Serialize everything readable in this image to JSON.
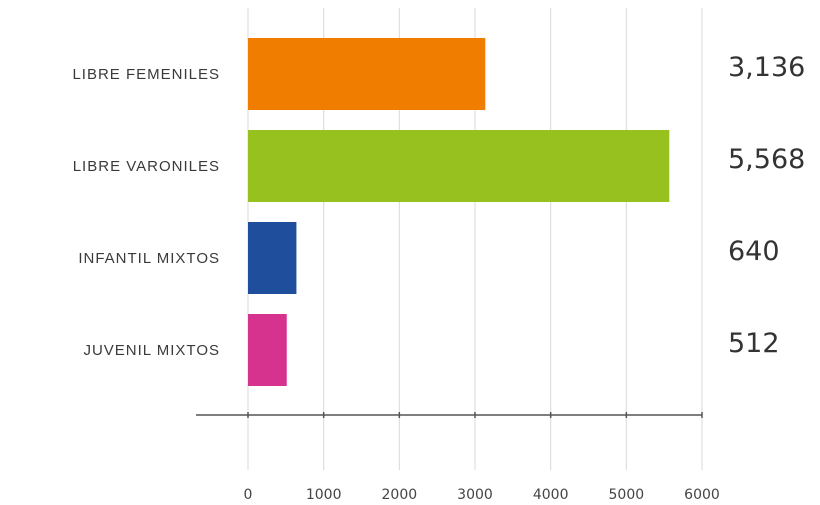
{
  "chart_data": {
    "type": "bar",
    "orientation": "horizontal",
    "categories": [
      "LIBRE FEMENILES",
      "LIBRE VARONILES",
      "INFANTIL MIXTOS",
      "JUVENIL MIXTOS"
    ],
    "values": [
      3136,
      5568,
      640,
      512
    ],
    "value_labels": [
      "3,136",
      "5,568",
      "640",
      "512"
    ],
    "colors": [
      "#f07d00",
      "#96c11f",
      "#1f4e9c",
      "#d6338f"
    ],
    "xlim": [
      0,
      6000
    ],
    "xticks": [
      0,
      1000,
      2000,
      3000,
      4000,
      5000,
      6000
    ],
    "xtick_labels": [
      "0",
      "1000",
      "2000",
      "3000",
      "4000",
      "5000",
      "6000"
    ],
    "grid": true
  }
}
